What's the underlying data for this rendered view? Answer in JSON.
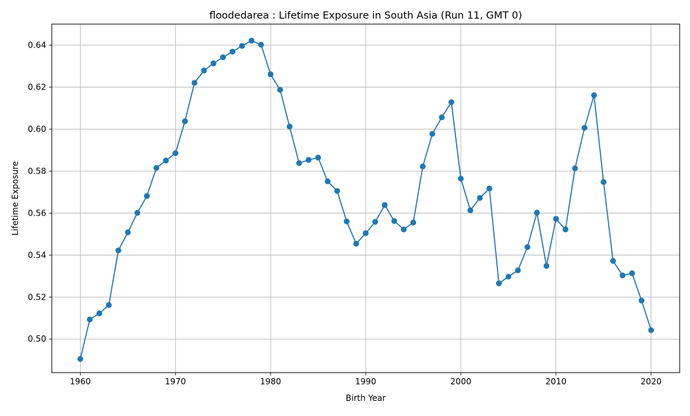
{
  "chart_data": {
    "type": "line",
    "title": "floodedarea : Lifetime Exposure in South Asia (Run 11, GMT 0)",
    "xlabel": "Birth Year",
    "ylabel": "Lifetime Exposure",
    "xlim": [
      1957,
      2023
    ],
    "ylim": [
      0.484,
      0.65
    ],
    "xticks": [
      1960,
      1970,
      1980,
      1990,
      2000,
      2010,
      2020
    ],
    "yticks": [
      0.5,
      0.52,
      0.54,
      0.56,
      0.58,
      0.6,
      0.62,
      0.64
    ],
    "xtick_labels": [
      "1960",
      "1970",
      "1980",
      "1990",
      "2000",
      "2010",
      "2020"
    ],
    "ytick_labels": [
      "0.50",
      "0.52",
      "0.54",
      "0.56",
      "0.58",
      "0.60",
      "0.62",
      "0.64"
    ],
    "grid": true,
    "line_color": "#1f77b4",
    "marker": "circle",
    "series": [
      {
        "x": [
          1960,
          1961,
          1962,
          1963,
          1964,
          1965,
          1966,
          1967,
          1968,
          1969,
          1970,
          1971,
          1972,
          1973,
          1974,
          1975,
          1976,
          1977,
          1978,
          1979,
          1980,
          1981,
          1982,
          1983,
          1984,
          1985,
          1986,
          1987,
          1988,
          1989,
          1990,
          1991,
          1992,
          1993,
          1994,
          1995,
          1996,
          1997,
          1998,
          1999,
          2000,
          2001,
          2002,
          2003,
          2004,
          2005,
          2006,
          2007,
          2008,
          2009,
          2010,
          2011,
          2012,
          2013,
          2014,
          2015,
          2016,
          2017,
          2018,
          2019,
          2020
        ],
        "values": [
          0.4905,
          0.5093,
          0.5122,
          0.5162,
          0.5422,
          0.5508,
          0.5601,
          0.5681,
          0.5815,
          0.585,
          0.5885,
          0.6037,
          0.622,
          0.6279,
          0.6313,
          0.6342,
          0.6369,
          0.6396,
          0.6421,
          0.6402,
          0.6261,
          0.6187,
          0.6012,
          0.5838,
          0.5853,
          0.5864,
          0.5751,
          0.5705,
          0.556,
          0.5454,
          0.5504,
          0.5558,
          0.5638,
          0.5562,
          0.5522,
          0.5555,
          0.5822,
          0.5977,
          0.6056,
          0.6128,
          0.5764,
          0.5613,
          0.5672,
          0.5717,
          0.5265,
          0.5297,
          0.5327,
          0.5438,
          0.5602,
          0.5348,
          0.5572,
          0.5522,
          0.5813,
          0.6006,
          0.6161,
          0.5748,
          0.5372,
          0.5303,
          0.5313,
          0.5183,
          0.5042
        ]
      }
    ]
  }
}
